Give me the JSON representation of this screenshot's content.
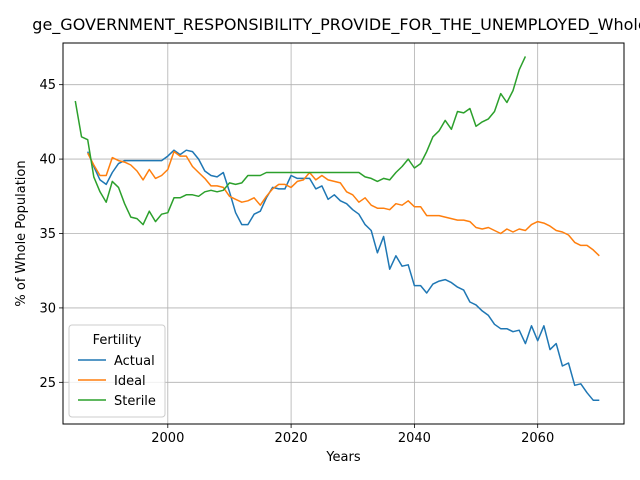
{
  "chart_data": {
    "type": "line",
    "title": "ge_GOVERNMENT_RESPONSIBILITY_PROVIDE_FOR_THE_UNEMPLOYED_Whole_",
    "xlabel": "Years",
    "ylabel": "% of Whole Population",
    "xlim": [
      1983,
      2074
    ],
    "ylim": [
      22.2,
      47.8
    ],
    "x_ticks": [
      2000,
      2020,
      2040,
      2060
    ],
    "y_ticks": [
      25,
      30,
      35,
      40,
      45
    ],
    "grid": true,
    "legend": {
      "title": "Fertility",
      "placement": "lower-left"
    },
    "series": [
      {
        "name": "Actual",
        "color": "#1f77b4",
        "x": [
          1987,
          1988,
          1989,
          1990,
          1991,
          1992,
          1993,
          1994,
          1995,
          1996,
          1997,
          1998,
          1999,
          2000,
          2001,
          2002,
          2003,
          2004,
          2005,
          2006,
          2007,
          2008,
          2009,
          2010,
          2011,
          2012,
          2013,
          2014,
          2015,
          2016,
          2017,
          2018,
          2019,
          2020,
          2021,
          2022,
          2023,
          2024,
          2025,
          2026,
          2027,
          2028,
          2029,
          2030,
          2031,
          2032,
          2033,
          2034,
          2035,
          2036,
          2037,
          2038,
          2039,
          2040,
          2041,
          2042,
          2043,
          2044,
          2045,
          2046,
          2047,
          2048,
          2049,
          2050,
          2051,
          2052,
          2053,
          2054,
          2055,
          2056,
          2057,
          2058,
          2059,
          2060,
          2061,
          2062,
          2063,
          2064,
          2065,
          2066,
          2067,
          2068,
          2069,
          2070
        ],
        "values": [
          40.5,
          39.5,
          38.6,
          38.3,
          39.1,
          39.7,
          39.9,
          39.9,
          39.9,
          39.9,
          39.9,
          39.9,
          39.9,
          40.2,
          40.6,
          40.3,
          40.6,
          40.5,
          40.0,
          39.2,
          38.9,
          38.8,
          39.1,
          37.8,
          36.4,
          35.6,
          35.6,
          36.3,
          36.5,
          37.4,
          38.1,
          38.0,
          38.0,
          38.9,
          38.7,
          38.7,
          38.7,
          38.0,
          38.2,
          37.3,
          37.6,
          37.2,
          37.0,
          36.6,
          36.3,
          35.6,
          35.2,
          33.7,
          34.8,
          32.6,
          33.5,
          32.8,
          32.9,
          31.5,
          31.5,
          31.0,
          31.6,
          31.8,
          31.9,
          31.7,
          31.4,
          31.2,
          30.4,
          30.2,
          29.8,
          29.5,
          28.9,
          28.6,
          28.6,
          28.4,
          28.5,
          27.6,
          28.8,
          27.8,
          28.8,
          27.2,
          27.6,
          26.1,
          26.3,
          24.8,
          24.9,
          24.3,
          23.8,
          23.8
        ]
      },
      {
        "name": "Ideal",
        "color": "#ff7f0e",
        "x": [
          1987,
          1988,
          1989,
          1990,
          1991,
          1992,
          1993,
          1994,
          1995,
          1996,
          1997,
          1998,
          1999,
          2000,
          2001,
          2002,
          2003,
          2004,
          2005,
          2006,
          2007,
          2008,
          2009,
          2010,
          2011,
          2012,
          2013,
          2014,
          2015,
          2016,
          2017,
          2018,
          2019,
          2020,
          2021,
          2022,
          2023,
          2024,
          2025,
          2026,
          2027,
          2028,
          2029,
          2030,
          2031,
          2032,
          2033,
          2034,
          2035,
          2036,
          2037,
          2038,
          2039,
          2040,
          2041,
          2042,
          2043,
          2044,
          2045,
          2046,
          2047,
          2048,
          2049,
          2050,
          2051,
          2052,
          2053,
          2054,
          2055,
          2056,
          2057,
          2058,
          2059,
          2060,
          2061,
          2062,
          2063,
          2064,
          2065,
          2066,
          2067,
          2068,
          2069,
          2070
        ],
        "values": [
          40.4,
          39.6,
          38.9,
          38.9,
          40.1,
          39.9,
          39.8,
          39.6,
          39.2,
          38.6,
          39.3,
          38.7,
          38.9,
          39.3,
          40.5,
          40.2,
          40.2,
          39.5,
          39.1,
          38.7,
          38.2,
          38.2,
          38.1,
          37.5,
          37.3,
          37.1,
          37.2,
          37.4,
          36.9,
          37.5,
          38.0,
          38.3,
          38.3,
          38.1,
          38.5,
          38.6,
          39.1,
          38.6,
          38.9,
          38.6,
          38.5,
          38.4,
          37.8,
          37.6,
          37.1,
          37.4,
          36.9,
          36.7,
          36.7,
          36.6,
          37.0,
          36.9,
          37.2,
          36.8,
          36.8,
          36.2,
          36.2,
          36.2,
          36.1,
          36.0,
          35.9,
          35.9,
          35.8,
          35.4,
          35.3,
          35.4,
          35.2,
          35.0,
          35.3,
          35.1,
          35.3,
          35.2,
          35.6,
          35.8,
          35.7,
          35.5,
          35.2,
          35.1,
          34.9,
          34.4,
          34.2,
          34.2,
          33.9,
          33.5
        ]
      },
      {
        "name": "Sterile",
        "color": "#2ca02c",
        "x": [
          1985,
          1986,
          1987,
          1988,
          1989,
          1990,
          1991,
          1992,
          1993,
          1994,
          1995,
          1996,
          1997,
          1998,
          1999,
          2000,
          2001,
          2002,
          2003,
          2004,
          2005,
          2006,
          2007,
          2008,
          2009,
          2010,
          2011,
          2012,
          2013,
          2014,
          2015,
          2016,
          2017,
          2018,
          2019,
          2020,
          2021,
          2022,
          2023,
          2024,
          2025,
          2026,
          2027,
          2028,
          2029,
          2030,
          2031,
          2032,
          2033,
          2034,
          2035,
          2036,
          2037,
          2038,
          2039,
          2040,
          2041,
          2042,
          2043,
          2044,
          2045,
          2046,
          2047,
          2048,
          2049,
          2050,
          2051,
          2052,
          2053,
          2054,
          2055,
          2056,
          2057,
          2058
        ],
        "values": [
          43.9,
          41.5,
          41.3,
          38.8,
          37.8,
          37.1,
          38.5,
          38.1,
          37.0,
          36.1,
          36.0,
          35.6,
          36.5,
          35.8,
          36.3,
          36.4,
          37.4,
          37.4,
          37.6,
          37.6,
          37.5,
          37.8,
          37.9,
          37.8,
          37.9,
          38.4,
          38.3,
          38.4,
          38.9,
          38.9,
          38.9,
          39.1,
          39.1,
          39.1,
          39.1,
          39.1,
          39.1,
          39.1,
          39.1,
          39.1,
          39.1,
          39.1,
          39.1,
          39.1,
          39.1,
          39.1,
          39.1,
          38.8,
          38.7,
          38.5,
          38.7,
          38.6,
          39.1,
          39.5,
          40.0,
          39.4,
          39.7,
          40.5,
          41.5,
          41.9,
          42.6,
          42.0,
          43.2,
          43.1,
          43.4,
          42.2,
          42.5,
          42.7,
          43.2,
          44.4,
          43.8,
          44.6,
          46.0,
          46.9
        ]
      }
    ]
  }
}
